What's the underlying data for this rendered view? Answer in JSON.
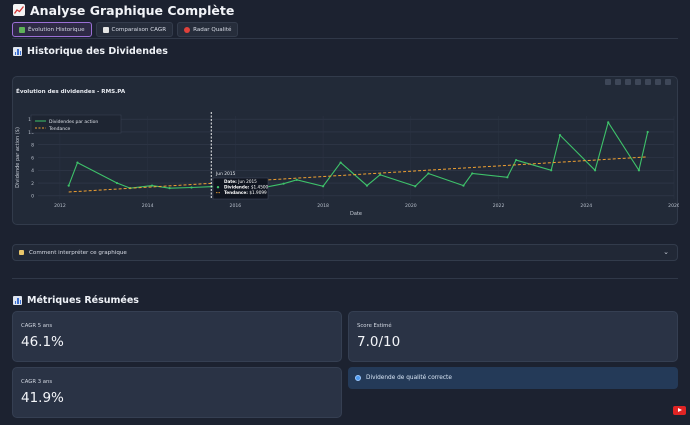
{
  "header": {
    "title": "Analyse Graphique Complète",
    "icon": "chart-up-icon"
  },
  "tabs": [
    {
      "label": "Évolution Historique",
      "icon": "chart-icon",
      "active": true
    },
    {
      "label": "Comparaison CAGR",
      "icon": "compare-icon",
      "active": false
    },
    {
      "label": "Radar Qualité",
      "icon": "target-icon",
      "active": false
    }
  ],
  "history_section": {
    "title": "Historique des Dividendes",
    "icon": "bar-chart-icon"
  },
  "chart": {
    "title": "Évolution des dividendes - RMS.PA"
  },
  "chart_data": {
    "type": "line",
    "title": "Évolution des dividendes - RMS.PA",
    "xlabel": "Date",
    "ylabel": "Dividende par action ($)",
    "xlim": [
      2011.5,
      2026
    ],
    "ylim": [
      -0.5,
      12.5
    ],
    "x_ticks": [
      "2012",
      "2014",
      "2016",
      "2018",
      "2020",
      "2022",
      "2024",
      "2026"
    ],
    "y_ticks": [
      "0",
      "2",
      "4",
      "6",
      "8",
      "10",
      "12"
    ],
    "grid": true,
    "legend_position": "top-left",
    "series": [
      {
        "name": "Dividendes par action",
        "color": "#3ec26a",
        "x": [
          2012.2,
          2012.4,
          2013.3,
          2013.6,
          2014.1,
          2014.5,
          2015.0,
          2015.5,
          2016.1,
          2016.5,
          2017.1,
          2017.4,
          2018.0,
          2018.4,
          2019.0,
          2019.3,
          2020.1,
          2020.4,
          2021.2,
          2021.4,
          2022.2,
          2022.4,
          2023.2,
          2023.4,
          2024.2,
          2024.5,
          2025.2,
          2025.4
        ],
        "y": [
          1.6,
          5.2,
          2.0,
          1.2,
          1.6,
          1.2,
          1.3,
          1.45,
          1.7,
          1.1,
          1.9,
          2.5,
          1.5,
          5.2,
          1.6,
          3.3,
          1.5,
          3.5,
          1.6,
          3.5,
          2.9,
          5.6,
          4.0,
          9.5,
          4.0,
          11.5,
          4.0,
          10.0
        ]
      },
      {
        "name": "Tendance",
        "color": "#f0a132",
        "dashed": true,
        "x": [
          2012.2,
          2025.4
        ],
        "y": [
          0.6,
          6.1
        ]
      }
    ],
    "tooltip": {
      "header": "Jun 2015",
      "rows": [
        {
          "label": "Date:",
          "value": "Jun 2015"
        },
        {
          "label": "Dividende:",
          "value": "$1.4500"
        },
        {
          "label": "Tendance:",
          "value": "$1.9099"
        }
      ]
    }
  },
  "expander": {
    "label": "Comment interpréter ce graphique",
    "icon": "bulb-icon"
  },
  "metrics_section": {
    "title": "Métriques Résumées",
    "icon": "bar-chart-icon"
  },
  "metrics": {
    "cagr5": {
      "label": "CAGR 5 ans",
      "value": "46.1%"
    },
    "cagr3": {
      "label": "CAGR 3 ans",
      "value": "41.9%"
    },
    "score": {
      "label": "Score Estimé",
      "value": "7.0/10"
    },
    "quality": {
      "text": "Dividende de qualité correcte",
      "color": "#4e9bf0"
    }
  },
  "colors": {
    "accent": "#9b6fd6",
    "background": "#1c2230",
    "line": "#3ec26a",
    "trend": "#f0a132"
  }
}
